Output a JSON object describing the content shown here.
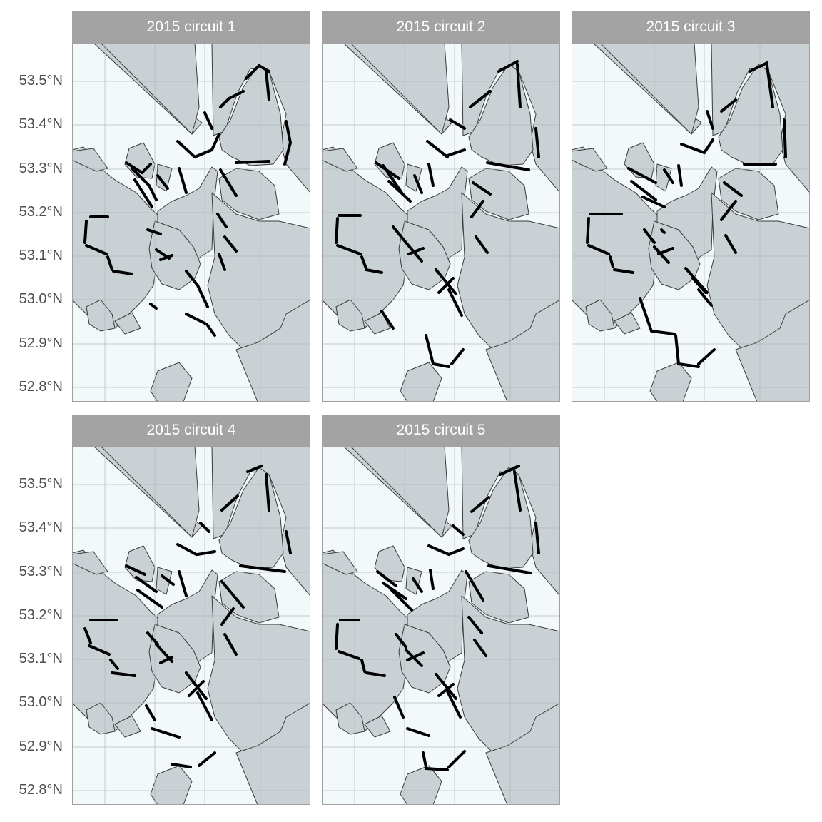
{
  "figure": {
    "panels": [
      {
        "id": "c1",
        "title": "2015 circuit 1"
      },
      {
        "id": "c2",
        "title": "2015 circuit 2"
      },
      {
        "id": "c3",
        "title": "2015 circuit 3"
      },
      {
        "id": "c4",
        "title": "2015 circuit 4"
      },
      {
        "id": "c5",
        "title": "2015 circuit 5"
      }
    ],
    "y_axis_labels": [
      "53.5°N",
      "53.4°N",
      "53.3°N",
      "53.2°N",
      "53.1°N",
      "53.0°N",
      "52.9°N",
      "52.8°N"
    ]
  },
  "colors": {
    "strip": "#a3a3a3",
    "water": "#f3f8fb",
    "land": "#c9d1d4",
    "coast": "#3a3a3a",
    "grid": "#b0b8bb",
    "track": "#000000"
  }
}
